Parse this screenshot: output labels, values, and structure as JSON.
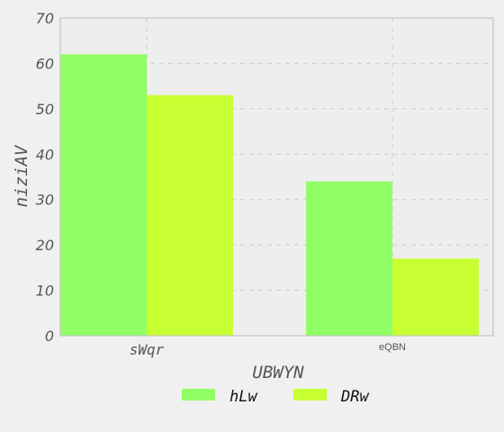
{
  "chart_data": {
    "type": "bar",
    "categories": [
      "sWqr",
      "eQBN"
    ],
    "series": [
      {
        "name": "hLw",
        "values": [
          62,
          34
        ],
        "color": "#90ff66"
      },
      {
        "name": "DRw",
        "values": [
          53,
          17
        ],
        "color": "#c8ff33"
      }
    ],
    "title": "",
    "xlabel": "UBWYN",
    "ylabel": "niziAV",
    "ylim": [
      0,
      70
    ],
    "yticks": [
      0,
      10,
      20,
      30,
      40,
      50,
      60,
      70
    ],
    "grid": true,
    "legend_position": "bottom-center",
    "colors": {
      "background": "#f0f0f0",
      "plot_background": "#eeeeee",
      "grid": "#cccccc",
      "text": "#555555",
      "axis_border": "#bbbbbb"
    }
  }
}
